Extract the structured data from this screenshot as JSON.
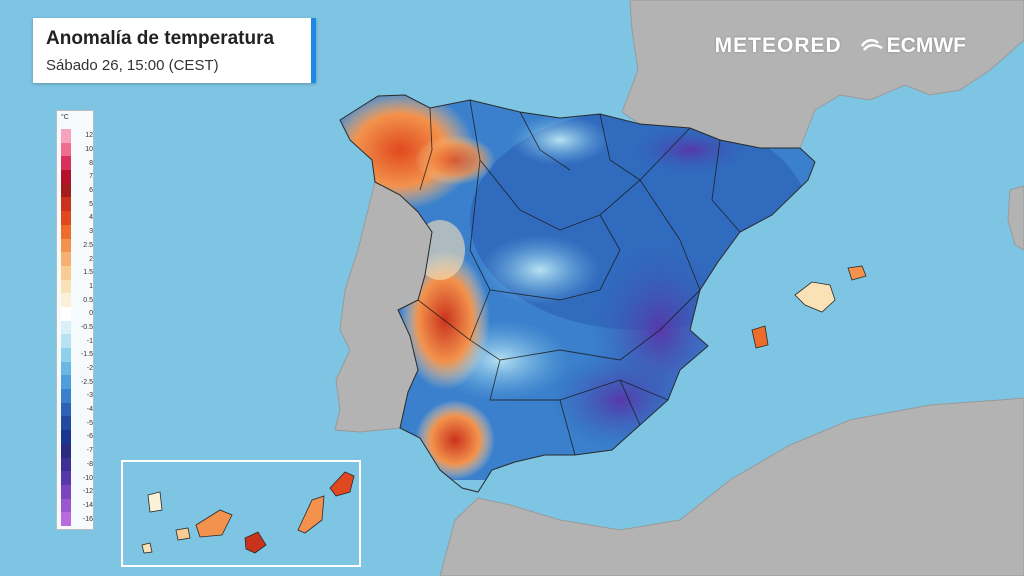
{
  "header": {
    "title": "Anomalía de temperatura",
    "subtitle": "Sábado 26, 15:00 (CEST)"
  },
  "logos": {
    "meteored": "METEORED",
    "ecmwf": "ECMWF"
  },
  "legend": {
    "unit": "°C",
    "labels": [
      "12",
      "10",
      "8",
      "7",
      "6",
      "5",
      "4",
      "3",
      "2.5",
      "2",
      "1.5",
      "1",
      "0.5",
      "0",
      "-0.5",
      "-1",
      "-1.5",
      "-2",
      "-2.5",
      "-3",
      "-4",
      "-5",
      "-6",
      "-7",
      "-8",
      "-10",
      "-12",
      "-14",
      "-16"
    ],
    "colors": [
      "#f7a3bd",
      "#ef6d8f",
      "#d8325a",
      "#b4122a",
      "#a31d1d",
      "#c9331c",
      "#e0491e",
      "#ec6d2b",
      "#f3924c",
      "#f6b070",
      "#f8cc93",
      "#fae1b6",
      "#fbf0d8",
      "#ffffff",
      "#dbeff8",
      "#b8e2f2",
      "#8fd0ec",
      "#6bb7e3",
      "#4f9dda",
      "#3b80cc",
      "#2e62b8",
      "#2449a0",
      "#1c3690",
      "#2a2a7e",
      "#3e2f96",
      "#5738aa",
      "#7a45bf",
      "#9b57cf",
      "#b96bdd"
    ]
  },
  "colors": {
    "sea": "#7ec4e3",
    "land": "#b3b3b3",
    "accent": "#1e88e5"
  }
}
